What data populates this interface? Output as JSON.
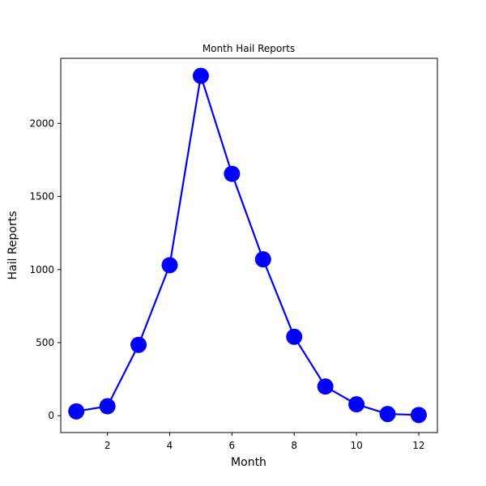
{
  "chart_data": {
    "type": "line",
    "title": "Month Hail Reports",
    "xlabel": "Month",
    "ylabel": "Hail Reports",
    "x": [
      1,
      2,
      3,
      4,
      5,
      6,
      7,
      8,
      9,
      10,
      11,
      12
    ],
    "series": [
      {
        "values": [
          30,
          65,
          485,
          1030,
          2325,
          1655,
          1070,
          540,
          200,
          78,
          12,
          5
        ]
      }
    ],
    "xlim": [
      0.5,
      12.6
    ],
    "ylim": [
      -115,
      2445
    ],
    "xticks": [
      2,
      4,
      6,
      8,
      10,
      12
    ],
    "yticks": [
      0,
      500,
      1000,
      1500,
      2000
    ],
    "grid": false,
    "color": "#0000ff"
  }
}
